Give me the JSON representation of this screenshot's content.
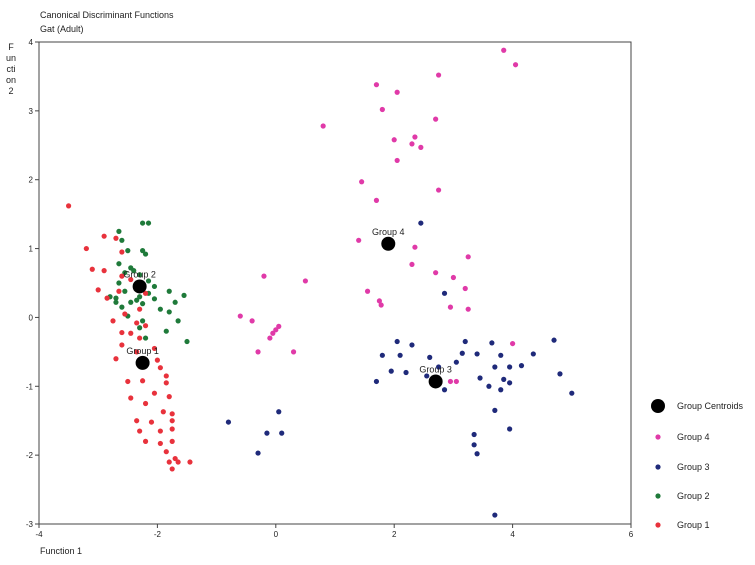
{
  "chart_data": {
    "type": "scatter",
    "title": "Canonical Discriminant Functions",
    "subtitle": "Gat (Adult)",
    "xlabel": "Function 1",
    "ylabel": "Function 2",
    "xlim": [
      -4,
      6
    ],
    "ylim": [
      -3,
      4
    ],
    "xticks": [
      "-4",
      "-2",
      "0",
      "2",
      "4",
      "6"
    ],
    "yticks": [
      "-3",
      "-2",
      "-1",
      "0",
      "1",
      "2",
      "3",
      "4"
    ],
    "legend_position": "right",
    "legend": [
      "Group Centroids",
      "Group 4",
      "Group 3",
      "Group 2",
      "Group 1"
    ],
    "colors": {
      "Group Centroids": "#000000",
      "Group 4": "#e03aa8",
      "Group 3": "#1f2a7a",
      "Group 2": "#1f7a3a",
      "Group 1": "#e8323c"
    },
    "centroids": [
      {
        "label": "Group 1",
        "x": -2.25,
        "y": -0.66
      },
      {
        "label": "Group 2",
        "x": -2.3,
        "y": 0.45
      },
      {
        "label": "Group 3",
        "x": 2.7,
        "y": -0.93
      },
      {
        "label": "Group 4",
        "x": 1.9,
        "y": 1.07
      }
    ],
    "series": [
      {
        "name": "Group 4",
        "points": [
          [
            3.85,
            3.88
          ],
          [
            4.05,
            3.67
          ],
          [
            2.75,
            3.52
          ],
          [
            1.7,
            3.38
          ],
          [
            2.05,
            3.27
          ],
          [
            1.8,
            3.02
          ],
          [
            2.7,
            2.88
          ],
          [
            0.8,
            2.78
          ],
          [
            2.35,
            2.62
          ],
          [
            2.0,
            2.58
          ],
          [
            2.3,
            2.52
          ],
          [
            2.45,
            2.47
          ],
          [
            2.05,
            2.28
          ],
          [
            1.45,
            1.97
          ],
          [
            2.75,
            1.85
          ],
          [
            1.7,
            1.7
          ],
          [
            1.4,
            1.12
          ],
          [
            2.35,
            1.02
          ],
          [
            3.25,
            0.88
          ],
          [
            2.3,
            0.77
          ],
          [
            2.7,
            0.65
          ],
          [
            3.0,
            0.58
          ],
          [
            -0.2,
            0.6
          ],
          [
            0.5,
            0.53
          ],
          [
            3.2,
            0.42
          ],
          [
            1.55,
            0.38
          ],
          [
            1.75,
            0.24
          ],
          [
            1.78,
            0.18
          ],
          [
            2.95,
            0.15
          ],
          [
            3.25,
            0.12
          ],
          [
            -0.6,
            0.02
          ],
          [
            -0.4,
            -0.05
          ],
          [
            0.05,
            -0.13
          ],
          [
            0.0,
            -0.18
          ],
          [
            -0.05,
            -0.23
          ],
          [
            -0.1,
            -0.3
          ],
          [
            4.0,
            -0.38
          ],
          [
            -0.3,
            -0.5
          ],
          [
            0.3,
            -0.5
          ],
          [
            2.95,
            -0.93
          ],
          [
            3.05,
            -0.93
          ]
        ]
      },
      {
        "name": "Group 3",
        "points": [
          [
            2.45,
            1.37
          ],
          [
            2.85,
            0.35
          ],
          [
            2.05,
            -0.35
          ],
          [
            2.3,
            -0.4
          ],
          [
            3.2,
            -0.35
          ],
          [
            3.65,
            -0.37
          ],
          [
            4.7,
            -0.33
          ],
          [
            1.8,
            -0.55
          ],
          [
            2.1,
            -0.55
          ],
          [
            2.6,
            -0.58
          ],
          [
            3.15,
            -0.52
          ],
          [
            3.4,
            -0.53
          ],
          [
            3.8,
            -0.55
          ],
          [
            4.35,
            -0.53
          ],
          [
            1.95,
            -0.78
          ],
          [
            2.2,
            -0.8
          ],
          [
            2.55,
            -0.85
          ],
          [
            2.75,
            -0.72
          ],
          [
            3.05,
            -0.65
          ],
          [
            3.7,
            -0.72
          ],
          [
            3.95,
            -0.72
          ],
          [
            4.15,
            -0.7
          ],
          [
            1.7,
            -0.93
          ],
          [
            3.45,
            -0.88
          ],
          [
            3.85,
            -0.9
          ],
          [
            3.95,
            -0.95
          ],
          [
            4.8,
            -0.82
          ],
          [
            2.85,
            -1.05
          ],
          [
            3.6,
            -1.0
          ],
          [
            3.8,
            -1.05
          ],
          [
            5.0,
            -1.1
          ],
          [
            3.7,
            -1.35
          ],
          [
            3.35,
            -1.7
          ],
          [
            3.95,
            -1.62
          ],
          [
            3.35,
            -1.85
          ],
          [
            3.4,
            -1.98
          ],
          [
            -0.8,
            -1.52
          ],
          [
            0.05,
            -1.37
          ],
          [
            -0.15,
            -1.68
          ],
          [
            0.1,
            -1.68
          ],
          [
            -0.3,
            -1.97
          ],
          [
            3.7,
            -2.87
          ]
        ]
      },
      {
        "name": "Group 2",
        "points": [
          [
            -2.65,
            1.25
          ],
          [
            -2.6,
            1.12
          ],
          [
            -2.25,
            1.37
          ],
          [
            -2.15,
            1.37
          ],
          [
            -2.5,
            0.97
          ],
          [
            -2.25,
            0.97
          ],
          [
            -2.2,
            0.92
          ],
          [
            -2.65,
            0.78
          ],
          [
            -2.45,
            0.72
          ],
          [
            -2.4,
            0.68
          ],
          [
            -2.55,
            0.65
          ],
          [
            -2.3,
            0.62
          ],
          [
            -2.65,
            0.5
          ],
          [
            -2.15,
            0.53
          ],
          [
            -2.35,
            0.48
          ],
          [
            -2.05,
            0.45
          ],
          [
            -2.55,
            0.38
          ],
          [
            -2.15,
            0.35
          ],
          [
            -1.8,
            0.38
          ],
          [
            -2.8,
            0.3
          ],
          [
            -2.7,
            0.28
          ],
          [
            -2.3,
            0.3
          ],
          [
            -2.05,
            0.27
          ],
          [
            -1.55,
            0.32
          ],
          [
            -2.7,
            0.22
          ],
          [
            -2.45,
            0.22
          ],
          [
            -2.35,
            0.25
          ],
          [
            -2.25,
            0.2
          ],
          [
            -1.7,
            0.22
          ],
          [
            -2.6,
            0.15
          ],
          [
            -1.95,
            0.12
          ],
          [
            -1.8,
            0.08
          ],
          [
            -2.5,
            0.02
          ],
          [
            -2.25,
            -0.05
          ],
          [
            -1.65,
            -0.05
          ],
          [
            -2.3,
            -0.15
          ],
          [
            -2.2,
            -0.3
          ],
          [
            -1.85,
            -0.2
          ],
          [
            -1.5,
            -0.35
          ]
        ]
      },
      {
        "name": "Group 1",
        "points": [
          [
            -3.5,
            1.62
          ],
          [
            -2.9,
            1.18
          ],
          [
            -2.7,
            1.15
          ],
          [
            -3.2,
            1.0
          ],
          [
            -2.6,
            0.95
          ],
          [
            -3.1,
            0.7
          ],
          [
            -2.9,
            0.68
          ],
          [
            -2.6,
            0.6
          ],
          [
            -2.45,
            0.55
          ],
          [
            -3.0,
            0.4
          ],
          [
            -2.65,
            0.38
          ],
          [
            -2.2,
            0.35
          ],
          [
            -2.85,
            0.28
          ],
          [
            -2.3,
            0.12
          ],
          [
            -2.55,
            0.05
          ],
          [
            -2.75,
            -0.05
          ],
          [
            -2.35,
            -0.08
          ],
          [
            -2.2,
            -0.12
          ],
          [
            -2.6,
            -0.22
          ],
          [
            -2.45,
            -0.23
          ],
          [
            -2.3,
            -0.3
          ],
          [
            -2.6,
            -0.4
          ],
          [
            -2.35,
            -0.5
          ],
          [
            -2.05,
            -0.45
          ],
          [
            -2.7,
            -0.6
          ],
          [
            -2.2,
            -0.62
          ],
          [
            -2.0,
            -0.62
          ],
          [
            -1.95,
            -0.73
          ],
          [
            -1.85,
            -0.85
          ],
          [
            -2.5,
            -0.93
          ],
          [
            -2.25,
            -0.92
          ],
          [
            -1.85,
            -0.95
          ],
          [
            -2.05,
            -1.1
          ],
          [
            -1.8,
            -1.15
          ],
          [
            -2.45,
            -1.17
          ],
          [
            -2.2,
            -1.25
          ],
          [
            -1.9,
            -1.37
          ],
          [
            -1.75,
            -1.4
          ],
          [
            -2.35,
            -1.5
          ],
          [
            -2.1,
            -1.52
          ],
          [
            -1.75,
            -1.5
          ],
          [
            -1.95,
            -1.65
          ],
          [
            -1.75,
            -1.62
          ],
          [
            -2.3,
            -1.65
          ],
          [
            -2.2,
            -1.8
          ],
          [
            -1.95,
            -1.83
          ],
          [
            -1.75,
            -1.8
          ],
          [
            -1.85,
            -1.95
          ],
          [
            -1.7,
            -2.05
          ],
          [
            -1.8,
            -2.1
          ],
          [
            -1.65,
            -2.1
          ],
          [
            -1.45,
            -2.1
          ],
          [
            -1.75,
            -2.2
          ]
        ]
      }
    ]
  }
}
